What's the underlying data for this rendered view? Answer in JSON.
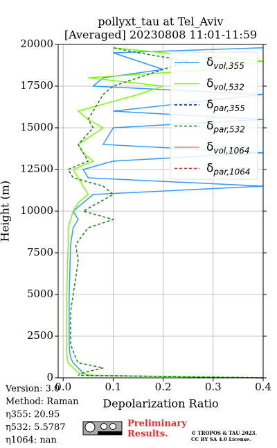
{
  "chart_data": {
    "type": "line",
    "title": "pollyxt_tau at Tel_Aviv",
    "subtitle": "[Averaged] 20230808 11:01-11:59",
    "x_label": "Depolarization Ratio",
    "y_label": "Height (m)",
    "xlim": [
      -0.01,
      0.4
    ],
    "xticks": [
      {
        "value": 0,
        "label": "0.0"
      },
      0.1,
      0.2,
      0.3,
      0.4
    ],
    "ylim": [
      0,
      20000
    ],
    "yticks": [
      0,
      2500,
      5000,
      7500,
      10000,
      12500,
      15000,
      17500,
      20000
    ],
    "grid": true,
    "legend": "upper right",
    "heights": [
      0,
      150,
      300,
      600,
      900,
      1200,
      1600,
      2000,
      3000,
      4000,
      5000,
      6000,
      7000,
      8000,
      9000,
      9500,
      10000,
      10500,
      11000,
      11500,
      12000,
      12500,
      13000,
      13500,
      14000,
      15000,
      15500,
      16000,
      17000,
      17500,
      18000,
      18500,
      19000,
      19500,
      19800
    ],
    "series": [
      {
        "name": "δvol,355",
        "color": "#3399ff",
        "dash": false,
        "values": [
          0.4,
          0.05,
          0.04,
          0.03,
          0.02,
          0.015,
          0.013,
          0.012,
          0.012,
          0.012,
          0.012,
          0.013,
          0.014,
          0.015,
          0.02,
          0.03,
          0.02,
          0.04,
          0.06,
          0.4,
          0.05,
          0.04,
          0.1,
          0.4,
          0.08,
          0.1,
          0.4,
          0.1,
          0.4,
          0.06,
          0.08,
          0.2,
          0.15,
          0.1,
          0.4
        ]
      },
      {
        "name": "δvol,532",
        "color": "#7cfc00",
        "dash": false,
        "values": [
          0.4,
          0.06,
          0.03,
          0.02,
          0.01,
          0.008,
          0.007,
          0.007,
          0.007,
          0.007,
          0.007,
          0.008,
          0.009,
          0.01,
          0.01,
          0.015,
          0.02,
          0.03,
          0.05,
          0.04,
          0.03,
          0.02,
          0.06,
          0.04,
          0.03,
          0.08,
          0.05,
          0.03,
          0.15,
          0.2,
          0.05,
          0.3,
          0.4,
          0.2,
          0.1
        ]
      },
      {
        "name": "δpar,355",
        "color": "#0000cd",
        "dash": true,
        "values": [
          null,
          null,
          null,
          null,
          null,
          null,
          null,
          null,
          null,
          null,
          null,
          null,
          null,
          null,
          null,
          null,
          null,
          null,
          null,
          null,
          null,
          null,
          null,
          null,
          null,
          null,
          null,
          null,
          null,
          null,
          null,
          null,
          null,
          null,
          null
        ]
      },
      {
        "name": "δpar,532",
        "color": "#1a7a1a",
        "dash": true,
        "values": [
          0.4,
          0.03,
          0.04,
          0.08,
          0.03,
          0.025,
          0.02,
          0.015,
          0.015,
          0.015,
          0.02,
          0.025,
          0.03,
          0.025,
          0.05,
          0.1,
          0.04,
          0.07,
          0.1,
          0.08,
          0.02,
          0.01,
          0.05,
          0.04,
          0.03,
          0.06,
          0.05,
          0.06,
          0.08,
          0.1,
          0.15,
          0.2,
          0.25,
          0.15,
          0.1
        ]
      },
      {
        "name": "δvol,1064",
        "color": "#ff7f50",
        "dash": false,
        "values": [
          null,
          null,
          null,
          null,
          null,
          null,
          null,
          null,
          null,
          null,
          null,
          null,
          null,
          null,
          null,
          null,
          null,
          null,
          null,
          null,
          null,
          null,
          null,
          null,
          null,
          null,
          null,
          null,
          null,
          null,
          null,
          null,
          null,
          null,
          null
        ]
      },
      {
        "name": "δpar,1064",
        "color": "#d62728",
        "dash": true,
        "values": [
          null,
          null,
          null,
          null,
          null,
          null,
          null,
          null,
          null,
          null,
          null,
          null,
          null,
          null,
          null,
          null,
          null,
          null,
          null,
          null,
          null,
          null,
          null,
          null,
          null,
          null,
          null,
          null,
          null,
          null,
          null,
          null,
          null,
          null,
          null
        ]
      }
    ],
    "info": [
      "Version: 3.0",
      "Method: Raman",
      "η355:  20.95",
      "η532: 5.5787",
      "η1064:    nan"
    ],
    "preliminary": [
      "Preliminary",
      "Results."
    ],
    "copyright": [
      "© TROPOS & TAU 2023.",
      "CC BY SA 4.0 License."
    ]
  }
}
